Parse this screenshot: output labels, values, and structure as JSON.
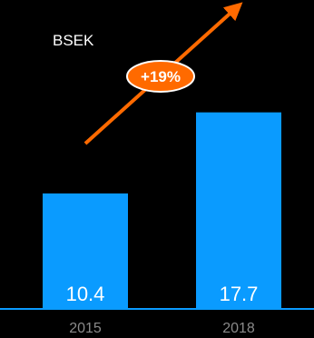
{
  "chart_data": {
    "type": "bar",
    "title": "BSEK",
    "categories": [
      "2015",
      "2018"
    ],
    "values": [
      10.4,
      17.7
    ],
    "value_labels": [
      "10.4",
      "17.7"
    ],
    "ylim": [
      0,
      18.0
    ],
    "grid": false,
    "annotations": [
      {
        "text": "+19%",
        "kind": "growth-arrow",
        "direction": "up-right"
      }
    ]
  },
  "colors": {
    "background": "#000000",
    "bar": "#0a9bff",
    "axis": "#0a9bff",
    "arrow": "#ff6a00",
    "badge_fill": "#ff6a00",
    "badge_text": "#ffffff",
    "title_text": "#ffffff",
    "value_text": "#ffffff",
    "tick_text": "#8a8a8a"
  }
}
